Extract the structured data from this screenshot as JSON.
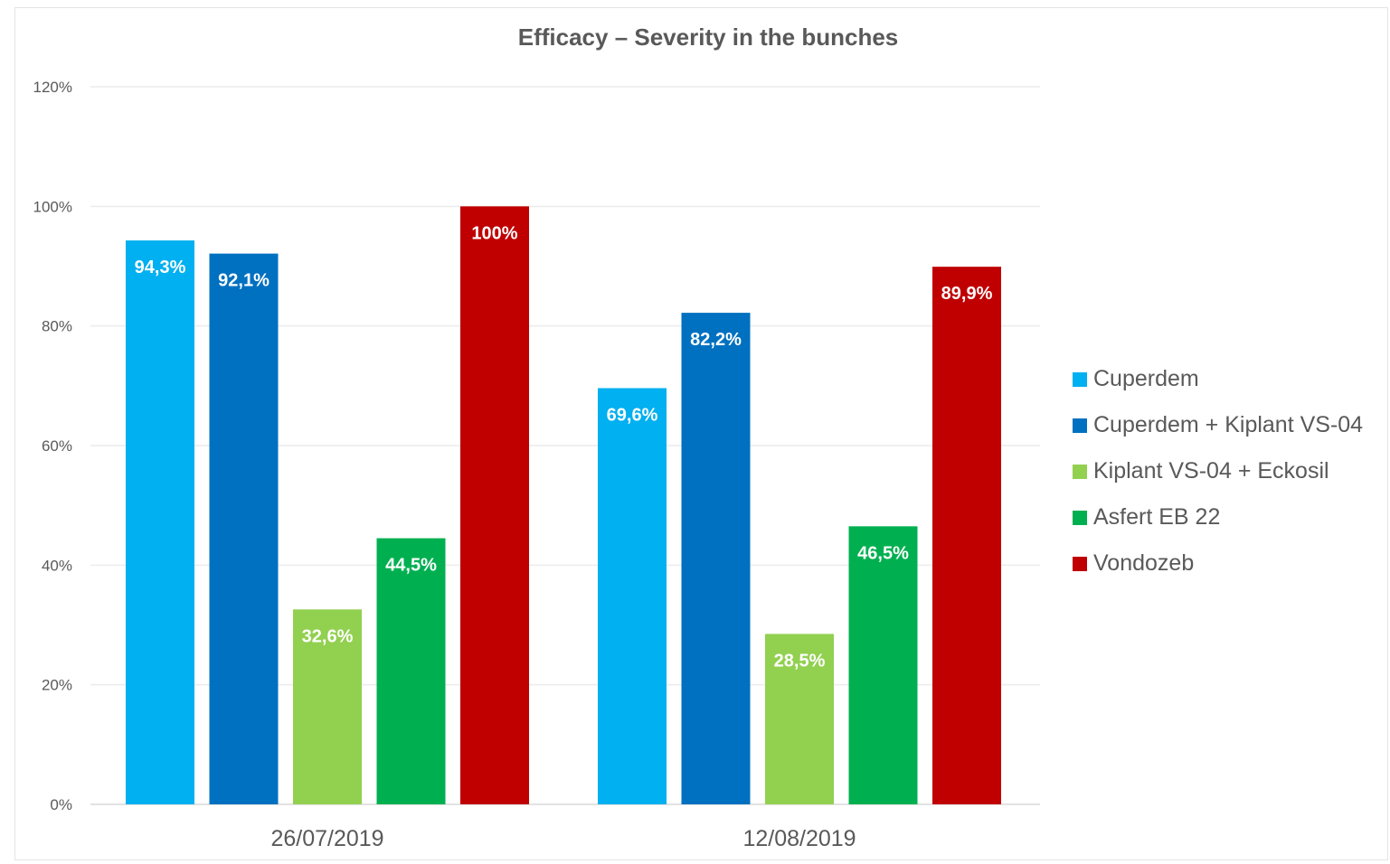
{
  "chart_data": {
    "type": "bar",
    "title": "Efficacy – Severity in the bunches",
    "xlabel": "",
    "ylabel": "",
    "categories": [
      "26/07/2019",
      "12/08/2019"
    ],
    "ylim": [
      0,
      120
    ],
    "yticks": [
      "0%",
      "20%",
      "40%",
      "60%",
      "80%",
      "100%",
      "120%"
    ],
    "grid": true,
    "legend_position": "right",
    "series": [
      {
        "name": "Cuperdem",
        "color": "#00b0f0",
        "values": [
          94.3,
          69.6
        ],
        "labels": [
          "94,3%",
          "69,6%"
        ]
      },
      {
        "name": "Cuperdem + Kiplant VS-04",
        "color": "#0070c0",
        "values": [
          92.1,
          82.2
        ],
        "labels": [
          "92,1%",
          "82,2%"
        ]
      },
      {
        "name": "Kiplant VS-04 + Eckosil",
        "color": "#92d050",
        "values": [
          32.6,
          28.5
        ],
        "labels": [
          "32,6%",
          "28,5%"
        ]
      },
      {
        "name": "Asfert EB 22",
        "color": "#00b050",
        "values": [
          44.5,
          46.5
        ],
        "labels": [
          "44,5%",
          "46,5%"
        ]
      },
      {
        "name": "Vondozeb",
        "color": "#c00000",
        "values": [
          100,
          89.9
        ],
        "labels": [
          "100%",
          "89,9%"
        ]
      }
    ]
  }
}
